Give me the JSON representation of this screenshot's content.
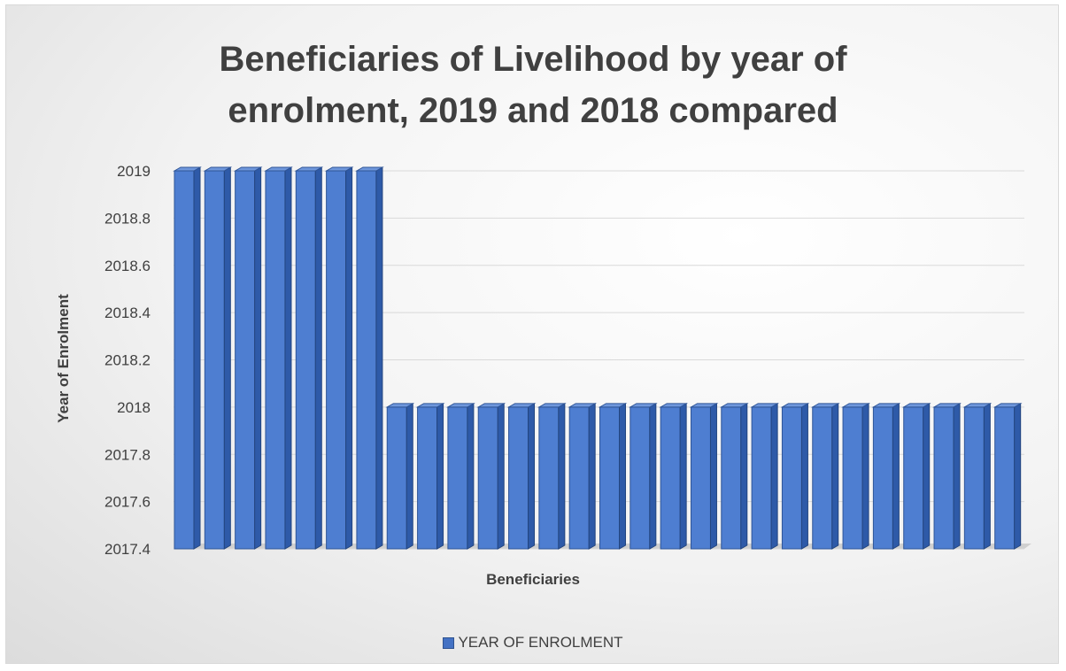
{
  "chart_data": {
    "type": "bar",
    "title_lines": [
      "Beneficiaries of Livelihood by year of",
      "enrolment, 2019 and 2018 compared"
    ],
    "xlabel": "Beneficiaries",
    "ylabel": "Year of Enrolment",
    "ylim": [
      2017.4,
      2019
    ],
    "yticks": [
      "2019",
      "2018.8",
      "2018.6",
      "2018.4",
      "2018.2",
      "2018",
      "2017.8",
      "2017.6",
      "2017.4"
    ],
    "grid": true,
    "legend_position": "bottom",
    "series": [
      {
        "name": "YEAR OF ENROLMENT",
        "color": "#4472c4",
        "values": [
          2019,
          2019,
          2019,
          2019,
          2019,
          2019,
          2019,
          2018,
          2018,
          2018,
          2018,
          2018,
          2018,
          2018,
          2018,
          2018,
          2018,
          2018,
          2018,
          2018,
          2018,
          2018,
          2018,
          2018,
          2018,
          2018,
          2018,
          2018
        ]
      }
    ]
  }
}
